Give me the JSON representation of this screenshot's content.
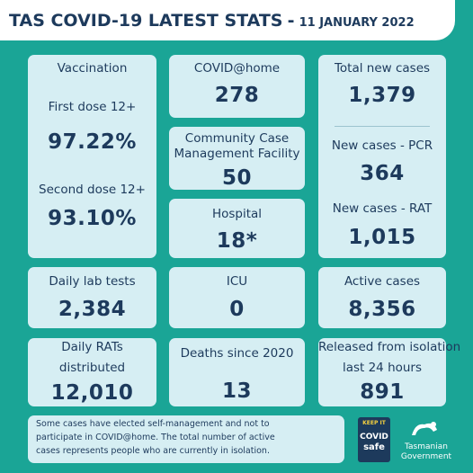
{
  "header": {
    "title": "TAS COVID-19 LATEST STATS",
    "separator": "-",
    "date": "11 JANUARY 2022"
  },
  "vaccination": {
    "title": "Vaccination",
    "items": [
      {
        "label": "First dose 12+",
        "value": "97.22%"
      },
      {
        "label": "Second dose 12+",
        "value": "93.10%"
      }
    ]
  },
  "covid_at_home": {
    "label": "COVID@home",
    "value": "278"
  },
  "community_case": {
    "label_lines": [
      "Community Case",
      "Management Facility"
    ],
    "value": "50"
  },
  "hospital": {
    "label": "Hospital",
    "value": "18*"
  },
  "new_cases": {
    "items": [
      {
        "label": "Total new cases",
        "value": "1,379"
      },
      {
        "label": "New cases - PCR",
        "value": "364"
      },
      {
        "label": "New cases - RAT",
        "value": "1,015"
      }
    ]
  },
  "daily_lab_tests": {
    "label": "Daily lab tests",
    "value": "2,384"
  },
  "icu": {
    "label": "ICU",
    "value": "0"
  },
  "active_cases": {
    "label": "Active cases",
    "value": "8,356"
  },
  "daily_rats": {
    "label_lines": [
      "Daily RATs",
      "distributed"
    ],
    "value": "12,010"
  },
  "deaths": {
    "label": "Deaths since 2020",
    "value": "13"
  },
  "released": {
    "label_lines": [
      "Released from isolation",
      "last 24 hours"
    ],
    "value": "891"
  },
  "footnote": {
    "lines": [
      "Some cases have elected self-management and not to",
      "participate in COVID@home. The total number of active",
      "cases represents people who are currently in isolation."
    ]
  },
  "logos": {
    "covid_safe": [
      "KEEP IT",
      "COVID",
      "safe"
    ],
    "government": [
      "Tasmanian",
      "Government"
    ]
  }
}
